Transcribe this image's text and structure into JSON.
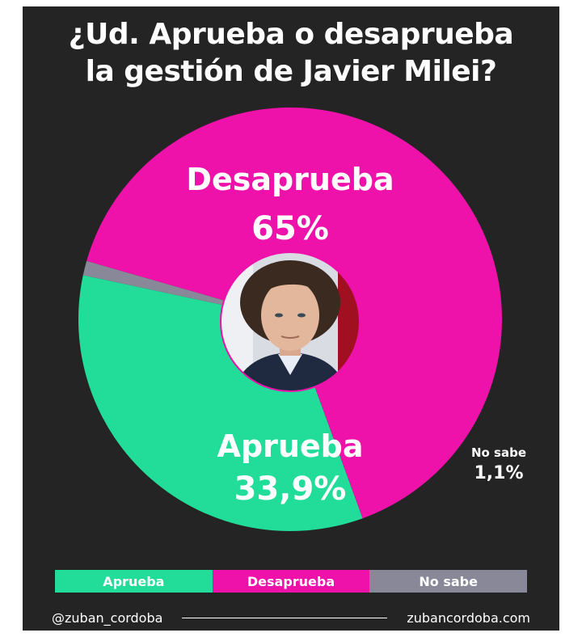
{
  "title": {
    "line1": "¿Ud. Aprueba o desaprueba",
    "line2": "la gestión de Javier Milei?"
  },
  "colors": {
    "background": "#242424",
    "aprueba": "#22dd99",
    "desaprueba": "#ee11aa",
    "no_sabe": "#888899"
  },
  "chart_data": {
    "type": "pie",
    "title": "¿Ud. Aprueba o desaprueba la gestión de Javier Milei?",
    "slices": [
      {
        "label": "Desaprueba",
        "value": 65,
        "value_label": "65%",
        "color": "#ee11aa"
      },
      {
        "label": "Aprueba",
        "value": 33.9,
        "value_label": "33,9%",
        "color": "#22dd99"
      },
      {
        "label": "No sabe",
        "value": 1.1,
        "value_label": "1,1%",
        "color": "#888899"
      }
    ],
    "center_image": "portrait-photo",
    "legend_position": "bottom"
  },
  "legend": [
    {
      "label": "Aprueba",
      "color": "#22dd99"
    },
    {
      "label": "Desaprueba",
      "color": "#ee11aa"
    },
    {
      "label": "No sabe",
      "color": "#888899"
    }
  ],
  "footer": {
    "handle": "@zuban_cordoba",
    "website": "zubancordoba.com"
  }
}
